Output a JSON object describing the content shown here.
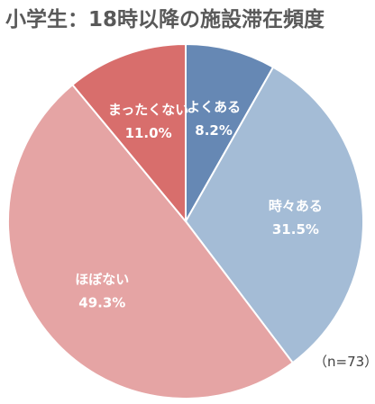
{
  "chart_data": {
    "type": "pie",
    "title": "小学生：18時以降の施設滞在頻度",
    "note": "（n=73）",
    "start_angle_deg": 0,
    "direction": "clockwise",
    "slices": [
      {
        "label": "よくある",
        "value": 8.2,
        "value_text": "8.2%",
        "color": "#6688b4"
      },
      {
        "label": "時々ある",
        "value": 31.5,
        "value_text": "31.5%",
        "color": "#a4bcd6"
      },
      {
        "label": "ほぼない",
        "value": 49.3,
        "value_text": "49.3%",
        "color": "#e5a4a4"
      },
      {
        "label": "まったくない",
        "value": 11.0,
        "value_text": "11.0%",
        "color": "#d86e6c"
      }
    ]
  }
}
